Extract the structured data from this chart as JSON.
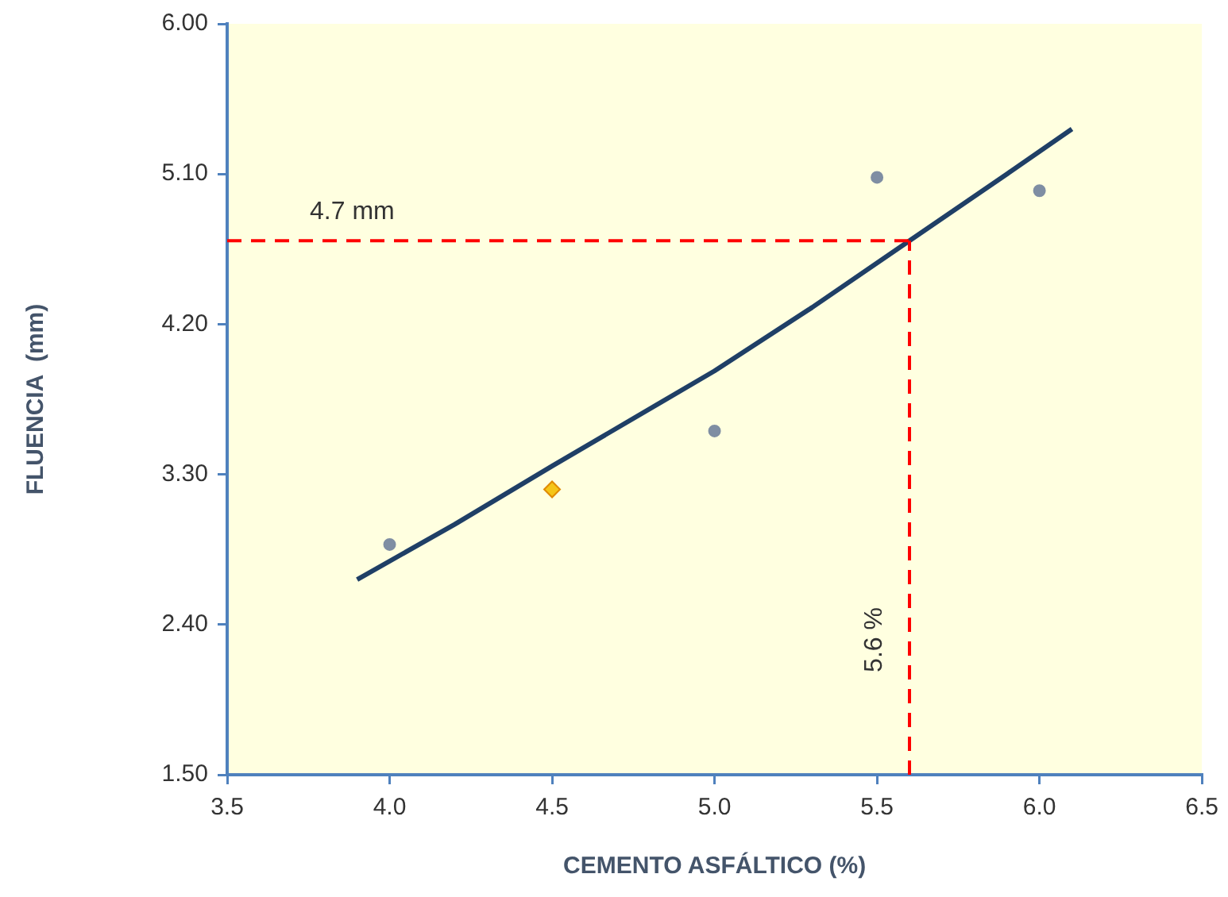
{
  "chart_data": {
    "type": "scatter",
    "xlabel": "CEMENTO ASFÁLTICO (%)",
    "ylabel": "FLUENCIA  (mm)",
    "xlim": [
      3.5,
      6.5
    ],
    "xticks": [
      3.5,
      {
        "value": 4,
        "label": "4.0"
      },
      4.5,
      {
        "value": 5,
        "label": "5.0"
      },
      5.5,
      {
        "value": 6,
        "label": "6.0"
      },
      6.5
    ],
    "ylim": [
      1.5,
      6
    ],
    "yticks": [
      {
        "value": 1.5,
        "label": "1.50"
      },
      {
        "value": 2.4,
        "label": "2.40"
      },
      {
        "value": 3.3,
        "label": "3.30"
      },
      {
        "value": 4.2,
        "label": "4.20"
      },
      {
        "value": 5.1,
        "label": "5.10"
      },
      {
        "value": 6,
        "label": "6.00"
      }
    ],
    "grid": false,
    "legend": false,
    "series": [
      {
        "type": "line",
        "color": "#1f3f66",
        "marker": "none",
        "x": [
          3.9,
          4.2,
          4.5,
          5.0,
          5.3,
          5.6,
          5.9,
          6.1
        ],
        "values": [
          2.67,
          3.0,
          3.35,
          3.92,
          4.3,
          4.7,
          5.1,
          5.37
        ]
      },
      {
        "type": "scatter",
        "color": "#7f8ea3",
        "marker": "circle",
        "x": [
          4.0,
          5.0,
          5.5,
          6.0
        ],
        "values": [
          2.88,
          3.56,
          5.08,
          5.0
        ]
      },
      {
        "type": "scatter",
        "color": "#f5c518",
        "marker": "diamond",
        "x": [
          4.5
        ],
        "values": [
          3.21
        ]
      }
    ],
    "ref_lines": [
      {
        "axis": "y",
        "value": 4.7,
        "label": "4.7 mm",
        "color": "#ff0000",
        "line_style": "dashed"
      },
      {
        "axis": "x",
        "value": 5.6,
        "label": "5.6 %",
        "color": "#ff0000",
        "line_style": "dashed"
      }
    ]
  }
}
